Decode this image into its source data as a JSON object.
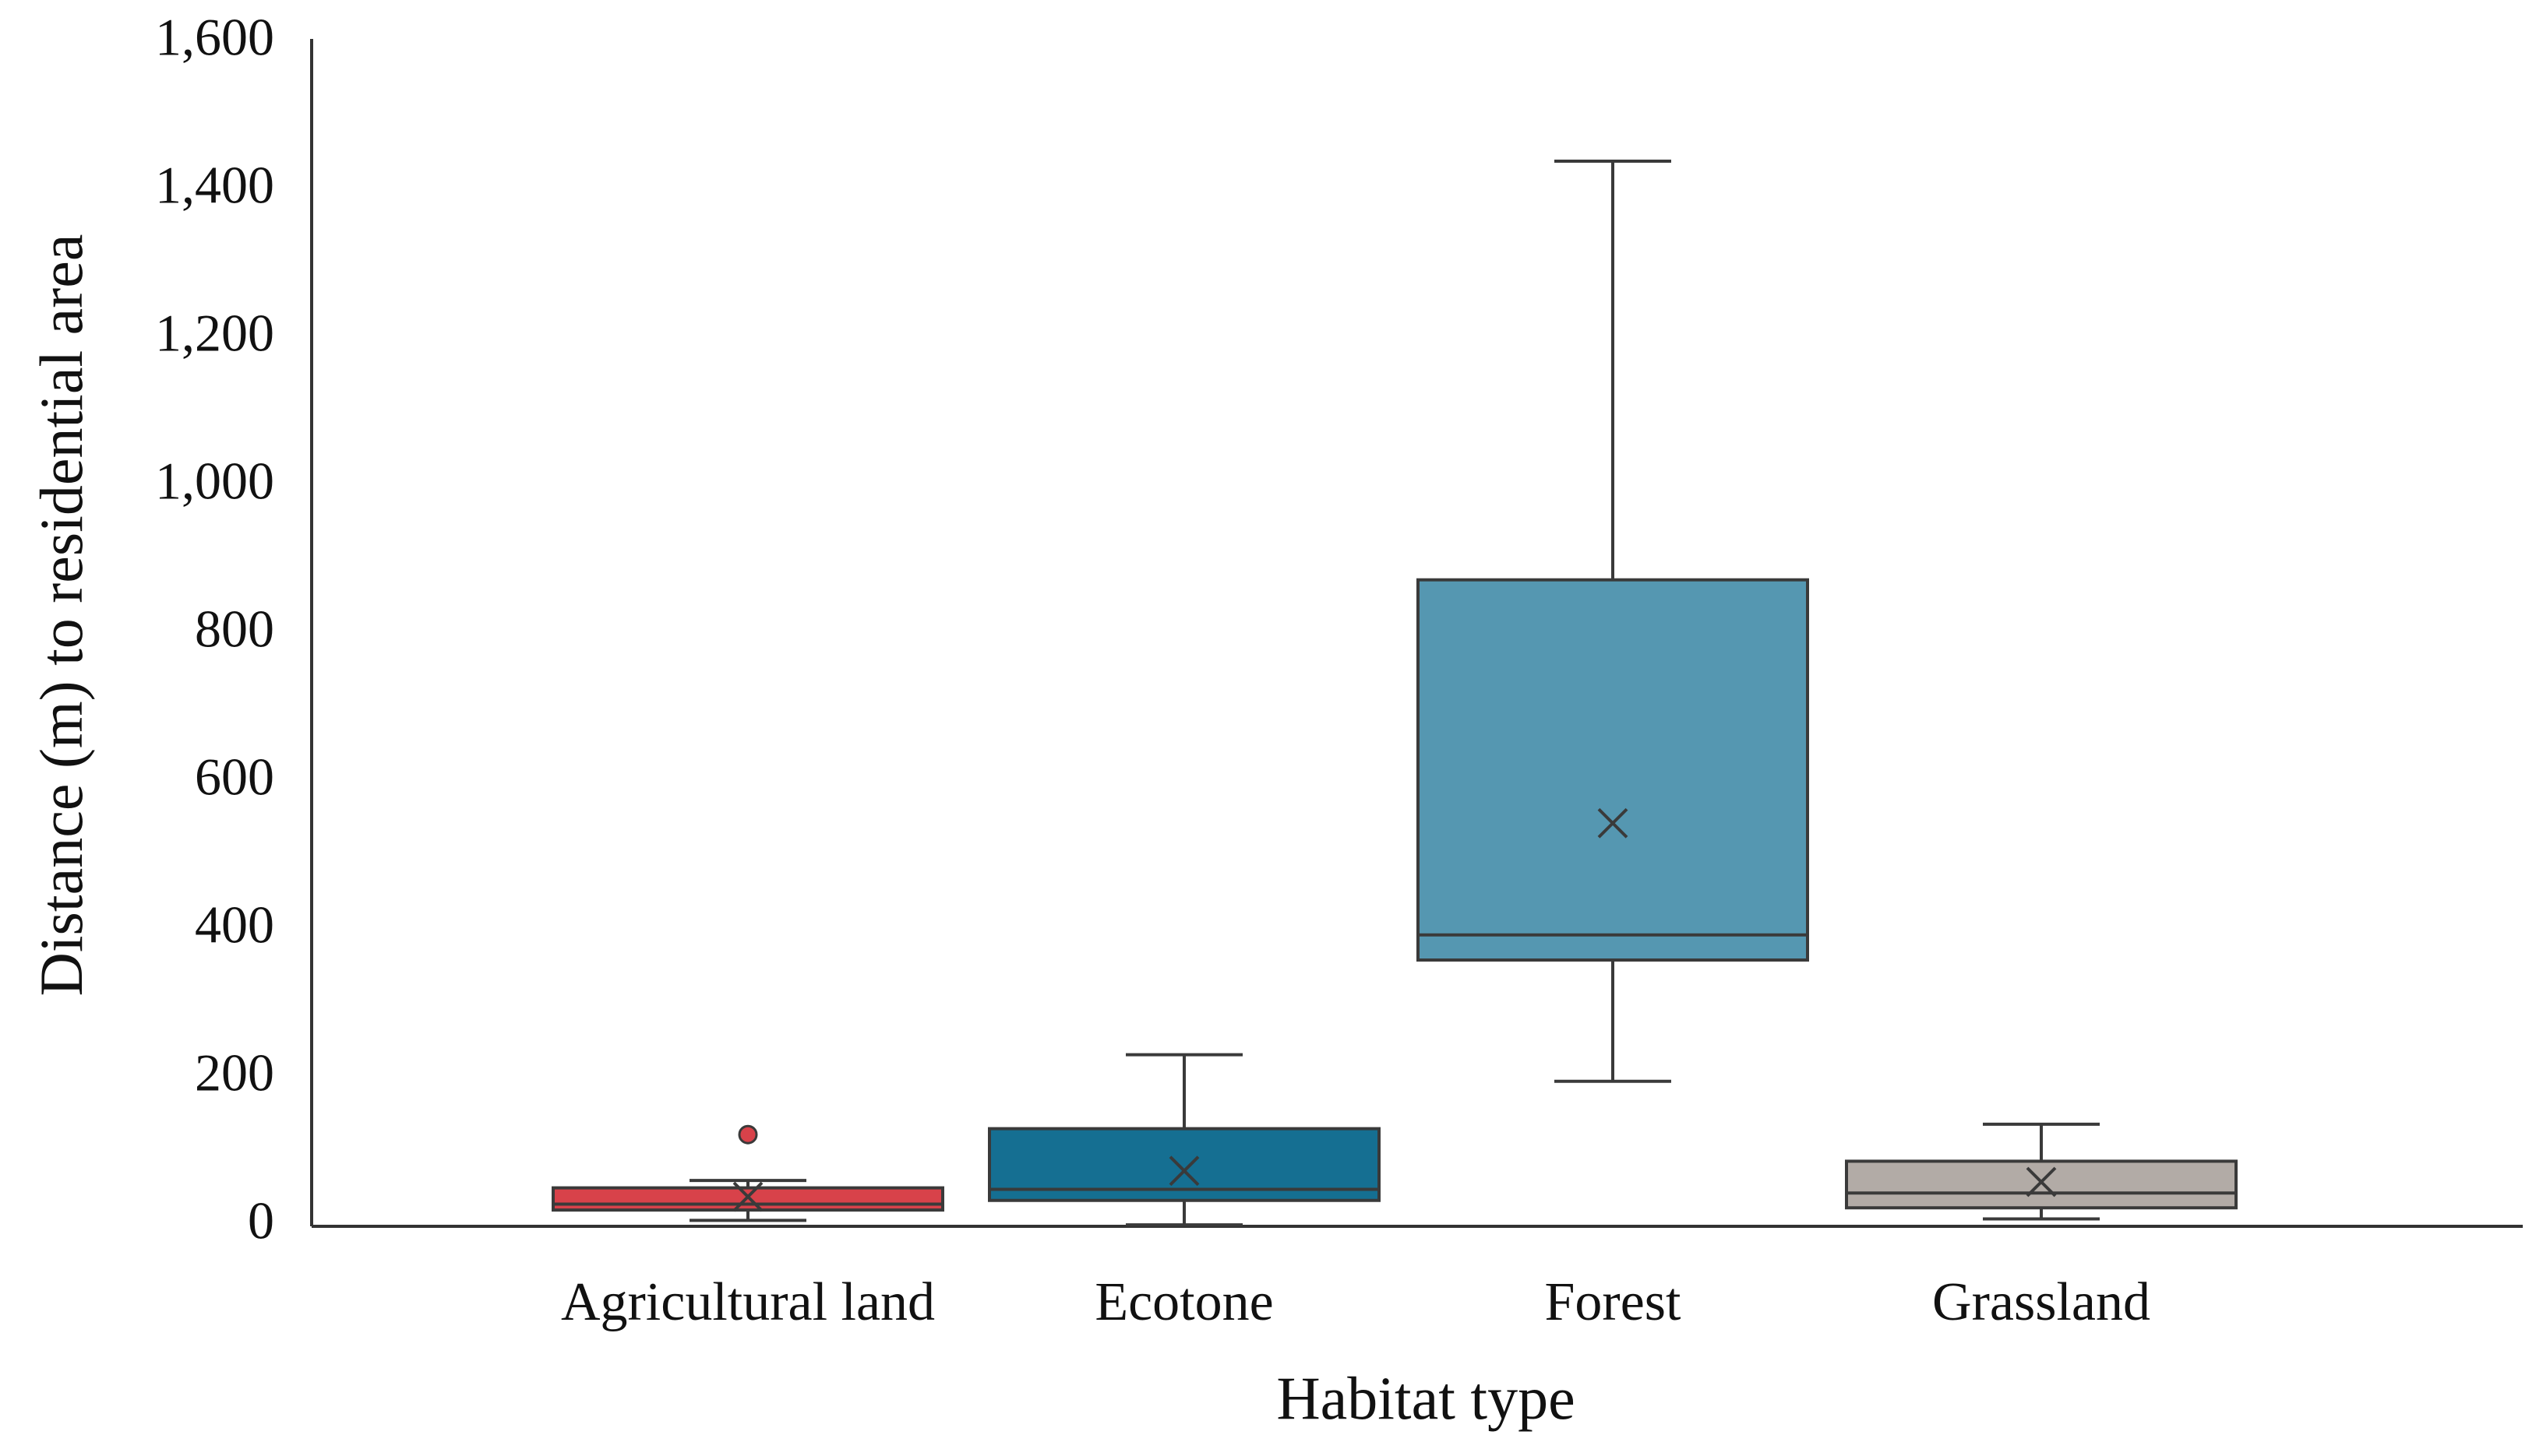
{
  "chart_data": {
    "type": "boxplot",
    "xlabel": "Habitat type",
    "ylabel": "Distance (m) to residential area",
    "ylim": [
      0,
      1600
    ],
    "y_ticks": [
      0,
      200,
      400,
      600,
      800,
      1000,
      1200,
      1400,
      1600
    ],
    "y_tick_labels": [
      "0",
      "200",
      "400",
      "600",
      "800",
      "1,000",
      "1,200",
      "1,400",
      "1,600"
    ],
    "grid": false,
    "legend": "none",
    "categories": [
      "Agricultural land",
      "Ecotone",
      "Forest",
      "Grassland"
    ],
    "boxes": [
      {
        "category": "Agricultural land",
        "min": 8,
        "q1": 22,
        "median": 30,
        "q3": 52,
        "max": 62,
        "mean": 40,
        "outliers": [
          124
        ],
        "color": "#d8424a"
      },
      {
        "category": "Ecotone",
        "min": 2,
        "q1": 35,
        "median": 50,
        "q3": 132,
        "max": 232,
        "mean": 75,
        "outliers": [],
        "color": "#156f92"
      },
      {
        "category": "Forest",
        "min": 196,
        "q1": 360,
        "median": 394,
        "q3": 874,
        "max": 1440,
        "mean": 545,
        "outliers": [],
        "color": "#5597b1"
      },
      {
        "category": "Grassland",
        "min": 10,
        "q1": 25,
        "median": 45,
        "q3": 88,
        "max": 138,
        "mean": 60,
        "outliers": [],
        "color": "#b2aba6"
      }
    ]
  }
}
